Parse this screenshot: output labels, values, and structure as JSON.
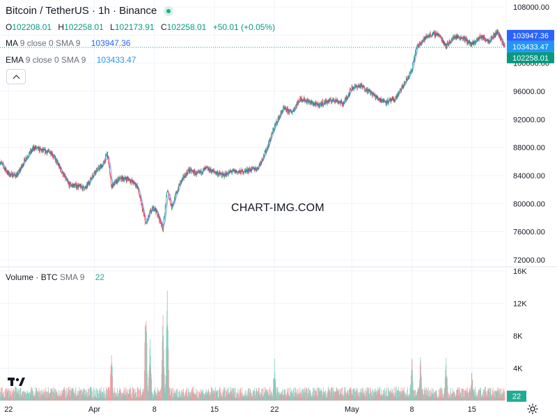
{
  "header": {
    "title": "Bitcoin / TetherUS · 1h · Binance"
  },
  "ohlc": {
    "o_label": "O",
    "o_value": "102208.01",
    "h_label": "H",
    "h_value": "102258.01",
    "l_label": "L",
    "l_value": "102173.91",
    "c_label": "C",
    "c_value": "102258.01",
    "change": "+50.01 (+0.05%)"
  },
  "indicators": {
    "ma": {
      "name": "MA",
      "params": "9 close 0 SMA 9",
      "value": "103947.36"
    },
    "ema": {
      "name": "EMA",
      "params": "9 close 0 SMA 9",
      "value": "103433.47"
    }
  },
  "volume_legend": {
    "name": "Volume · BTC",
    "params": "SMA 9",
    "value": "22"
  },
  "watermark": "CHART-IMG.COM",
  "logo": "17",
  "colors": {
    "up": "#22ab94",
    "down": "#f23645",
    "ma": "#2962ff",
    "ema": "#2196f3",
    "last_price": "#089981",
    "grid": "#f0f3fa"
  },
  "chart_data": {
    "type": "candlestick",
    "symbol": "BTCUSDT",
    "interval": "1h",
    "y_ticks": [
      "108000.00",
      "104000.00",
      "100000.00",
      "96000.00",
      "92000.00",
      "88000.00",
      "84000.00",
      "80000.00",
      "76000.00",
      "72000.00"
    ],
    "ylim": [
      71000,
      109000
    ],
    "volume_ticks": [
      "16K",
      "12K",
      "8K",
      "4K"
    ],
    "volume_ylim": [
      0,
      16500
    ],
    "x_ticks": [
      "22",
      "Apr",
      "8",
      "15",
      "22",
      "May",
      "8",
      "15"
    ],
    "price_labels": [
      {
        "text": "103947.36",
        "value": 103947.36,
        "role": "ma"
      },
      {
        "text": "103433.47",
        "value": 103433.47,
        "role": "ema"
      },
      {
        "text": "102258.01",
        "value": 102258.01,
        "role": "last"
      }
    ],
    "volume_last_label": "22",
    "price_path": [
      [
        "03-21 00",
        86000
      ],
      [
        "03-22 00",
        84200
      ],
      [
        "03-23 00",
        84000
      ],
      [
        "03-24 00",
        86500
      ],
      [
        "03-25 00",
        88000
      ],
      [
        "03-26 00",
        87500
      ],
      [
        "03-27 00",
        87300
      ],
      [
        "03-28 00",
        85000
      ],
      [
        "03-29 00",
        82700
      ],
      [
        "03-30 00",
        82500
      ],
      [
        "03-31 00",
        82200
      ],
      [
        "04-01 00",
        84500
      ],
      [
        "04-02 00",
        85500
      ],
      [
        "04-02 12",
        87200
      ],
      [
        "04-03 00",
        82500
      ],
      [
        "04-04 00",
        83600
      ],
      [
        "04-05 00",
        83500
      ],
      [
        "04-06 00",
        82500
      ],
      [
        "04-07 00",
        77000
      ],
      [
        "04-07 12",
        78800
      ],
      [
        "04-08 00",
        79500
      ],
      [
        "04-09 00",
        76500
      ],
      [
        "04-09 12",
        82000
      ],
      [
        "04-10 00",
        79500
      ],
      [
        "04-11 00",
        83000
      ],
      [
        "04-12 00",
        84800
      ],
      [
        "04-13 00",
        84200
      ],
      [
        "04-14 00",
        85000
      ],
      [
        "04-15 00",
        84500
      ],
      [
        "04-16 00",
        84000
      ],
      [
        "04-17 00",
        84600
      ],
      [
        "04-18 00",
        84500
      ],
      [
        "04-19 00",
        84800
      ],
      [
        "04-20 00",
        85000
      ],
      [
        "04-21 00",
        87500
      ],
      [
        "04-22 00",
        91000
      ],
      [
        "04-23 00",
        93500
      ],
      [
        "04-24 00",
        93000
      ],
      [
        "04-25 00",
        95000
      ],
      [
        "04-26 00",
        94500
      ],
      [
        "04-27 00",
        94000
      ],
      [
        "04-28 00",
        94500
      ],
      [
        "04-29 00",
        94800
      ],
      [
        "04-30 00",
        94200
      ],
      [
        "05-01 00",
        96500
      ],
      [
        "05-02 00",
        96800
      ],
      [
        "05-03 00",
        96000
      ],
      [
        "05-04 00",
        95000
      ],
      [
        "05-05 00",
        94500
      ],
      [
        "05-06 00",
        94800
      ],
      [
        "05-07 00",
        96800
      ],
      [
        "05-08 00",
        99000
      ],
      [
        "05-08 12",
        102000
      ],
      [
        "05-09 00",
        103000
      ],
      [
        "05-10 00",
        104000
      ],
      [
        "05-11 00",
        104200
      ],
      [
        "05-12 00",
        102500
      ],
      [
        "05-13 00",
        103800
      ],
      [
        "05-14 00",
        103600
      ],
      [
        "05-15 00",
        102600
      ],
      [
        "05-16 00",
        103800
      ],
      [
        "05-17 00",
        103200
      ],
      [
        "05-18 00",
        104500
      ],
      [
        "05-18 20",
        102258.01
      ]
    ],
    "volume_spikes": [
      [
        "04-03 00",
        7000
      ],
      [
        "04-07 00",
        15000
      ],
      [
        "04-07 12",
        9000
      ],
      [
        "04-09 00",
        12000
      ],
      [
        "04-09 12",
        14800
      ],
      [
        "04-22 00",
        5500
      ],
      [
        "05-08 00",
        6500
      ],
      [
        "05-09 00",
        6000
      ],
      [
        "05-12 00",
        5800
      ],
      [
        "05-15 00",
        4500
      ]
    ]
  }
}
